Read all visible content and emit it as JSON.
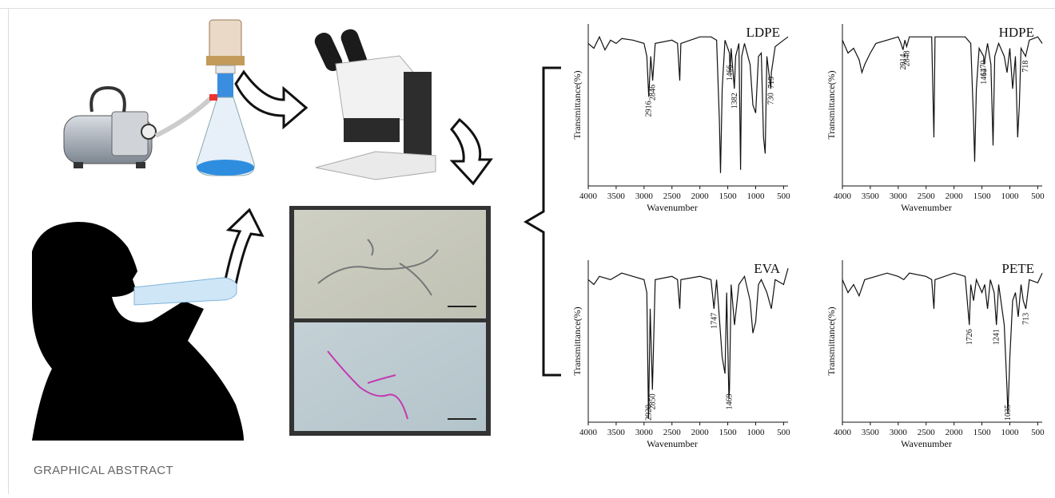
{
  "caption": "GRAPHICAL ABSTRACT",
  "chart_data": [
    {
      "type": "line",
      "title": "LDPE",
      "x_label": "Wavenumber",
      "y_label": "Transmittance(%)",
      "xlim": [
        4000,
        420
      ],
      "ylim": [
        0,
        100
      ],
      "xticks": [
        4000,
        3500,
        3000,
        2500,
        2000,
        1500,
        1000,
        500
      ],
      "color": "#111111",
      "x": [
        4000,
        3900,
        3800,
        3700,
        3600,
        3500,
        3400,
        3200,
        3000,
        2950,
        2916,
        2880,
        2846,
        2800,
        2500,
        2400,
        2360,
        2340,
        2000,
        1800,
        1700,
        1650,
        1630,
        1600,
        1550,
        1470,
        1460,
        1440,
        1382,
        1360,
        1300,
        1270,
        1250,
        1200,
        1100,
        1050,
        1000,
        950,
        900,
        860,
        830,
        800,
        730,
        719,
        650,
        500,
        420
      ],
      "values": [
        88,
        85,
        92,
        84,
        90,
        88,
        91,
        90,
        88,
        80,
        55,
        80,
        65,
        88,
        90,
        88,
        65,
        88,
        92,
        92,
        90,
        40,
        8,
        60,
        90,
        82,
        70,
        85,
        60,
        80,
        88,
        10,
        80,
        88,
        75,
        50,
        45,
        80,
        82,
        30,
        20,
        80,
        60,
        70,
        86,
        90,
        92
      ],
      "peaks": [
        2916,
        2846,
        1466,
        1382,
        730,
        719
      ]
    },
    {
      "type": "line",
      "title": "HDPE",
      "x_label": "Wavenumber",
      "y_label": "Transmittance(%)",
      "xlim": [
        4000,
        420
      ],
      "ylim": [
        0,
        100
      ],
      "xticks": [
        4000,
        3500,
        3000,
        2500,
        2000,
        1500,
        1000,
        500
      ],
      "color": "#111111",
      "x": [
        4000,
        3900,
        3800,
        3700,
        3650,
        3600,
        3500,
        3400,
        3000,
        2950,
        2914,
        2880,
        2848,
        2800,
        2400,
        2360,
        2340,
        2000,
        1800,
        1700,
        1650,
        1630,
        1600,
        1550,
        1470,
        1462,
        1400,
        1340,
        1300,
        1270,
        1200,
        1100,
        1050,
        1000,
        950,
        900,
        860,
        830,
        800,
        718,
        650,
        500,
        420
      ],
      "values": [
        90,
        82,
        85,
        78,
        70,
        75,
        82,
        88,
        92,
        88,
        84,
        90,
        86,
        92,
        92,
        30,
        92,
        92,
        92,
        88,
        40,
        15,
        60,
        85,
        80,
        75,
        88,
        75,
        25,
        80,
        88,
        80,
        70,
        85,
        60,
        80,
        30,
        50,
        85,
        80,
        90,
        92,
        88
      ],
      "peaks": [
        2914,
        2848,
        1470,
        1462,
        718
      ]
    },
    {
      "type": "line",
      "title": "EVA",
      "x_label": "Wavenumber",
      "y_label": "Transmittance(%)",
      "xlim": [
        4000,
        420
      ],
      "ylim": [
        0,
        100
      ],
      "xticks": [
        4000,
        3500,
        3000,
        2500,
        2000,
        1500,
        1000,
        500
      ],
      "color": "#111111",
      "x": [
        4000,
        3900,
        3800,
        3600,
        3400,
        3200,
        3000,
        2950,
        2920,
        2890,
        2850,
        2800,
        2500,
        2400,
        2360,
        2340,
        2000,
        1800,
        1747,
        1700,
        1600,
        1550,
        1520,
        1480,
        1469,
        1440,
        1380,
        1300,
        1200,
        1100,
        1050,
        1000,
        950,
        900,
        800,
        720,
        650,
        500,
        420
      ],
      "values": [
        88,
        85,
        90,
        88,
        92,
        90,
        88,
        80,
        2,
        70,
        20,
        88,
        90,
        88,
        70,
        88,
        90,
        88,
        70,
        88,
        40,
        30,
        80,
        15,
        20,
        85,
        60,
        85,
        90,
        75,
        55,
        62,
        85,
        88,
        80,
        70,
        88,
        85,
        95
      ],
      "peaks": [
        2920,
        2850,
        1747,
        1469
      ]
    },
    {
      "type": "line",
      "title": "PETE",
      "x_label": "Wavenumber",
      "y_label": "Transmittance(%)",
      "xlim": [
        4000,
        420
      ],
      "ylim": [
        0,
        100
      ],
      "xticks": [
        4000,
        3500,
        3000,
        2500,
        2000,
        1500,
        1000,
        500
      ],
      "color": "#111111",
      "x": [
        4000,
        3900,
        3800,
        3700,
        3600,
        3400,
        3200,
        3000,
        2900,
        2800,
        2500,
        2400,
        2360,
        2340,
        2000,
        1800,
        1726,
        1700,
        1650,
        1600,
        1500,
        1450,
        1400,
        1350,
        1280,
        1241,
        1200,
        1100,
        1050,
        1035,
        1000,
        950,
        900,
        850,
        800,
        760,
        713,
        650,
        500,
        420
      ],
      "values": [
        88,
        80,
        85,
        78,
        88,
        90,
        92,
        90,
        88,
        92,
        90,
        88,
        70,
        88,
        92,
        90,
        60,
        85,
        75,
        88,
        80,
        85,
        70,
        88,
        80,
        60,
        85,
        60,
        20,
        5,
        40,
        75,
        80,
        65,
        85,
        75,
        70,
        88,
        86,
        92
      ],
      "peaks": [
        1726,
        1241,
        1035,
        713
      ]
    }
  ]
}
